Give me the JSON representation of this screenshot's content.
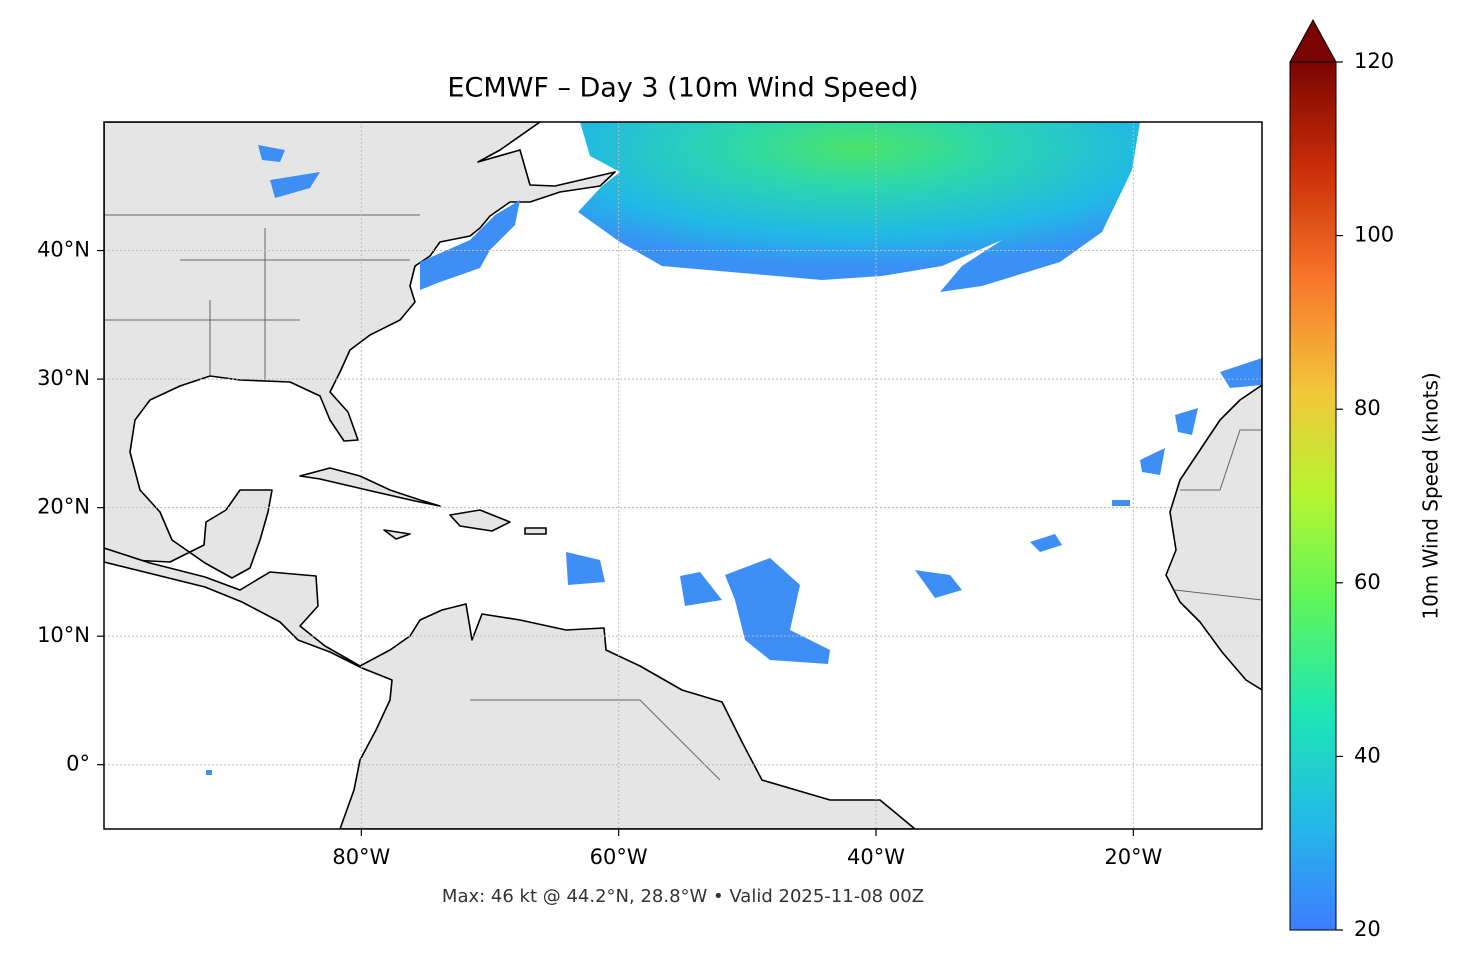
{
  "title": "ECMWF – Day 3 (10m Wind Speed)",
  "footer": "Max: 46 kt @ 44.2°N, 28.8°W • Valid 2025-11-08 00Z",
  "map": {
    "xlim": [
      -100,
      -10
    ],
    "ylim": [
      -5,
      50
    ],
    "grid": true,
    "xticks": [
      {
        "value": -80,
        "label": "80°W"
      },
      {
        "value": -60,
        "label": "60°W"
      },
      {
        "value": -40,
        "label": "40°W"
      },
      {
        "value": -20,
        "label": "20°W"
      }
    ],
    "yticks": [
      {
        "value": 0,
        "label": "0°"
      },
      {
        "value": 10,
        "label": "10°N"
      },
      {
        "value": 20,
        "label": "20°N"
      },
      {
        "value": 30,
        "label": "30°N"
      },
      {
        "value": 40,
        "label": "40°N"
      }
    ]
  },
  "colorbar": {
    "label": "10m Wind Speed (knots)",
    "lim": [
      20,
      120
    ],
    "ticks": [
      20,
      40,
      60,
      80,
      100,
      120
    ],
    "extend": "max"
  }
}
